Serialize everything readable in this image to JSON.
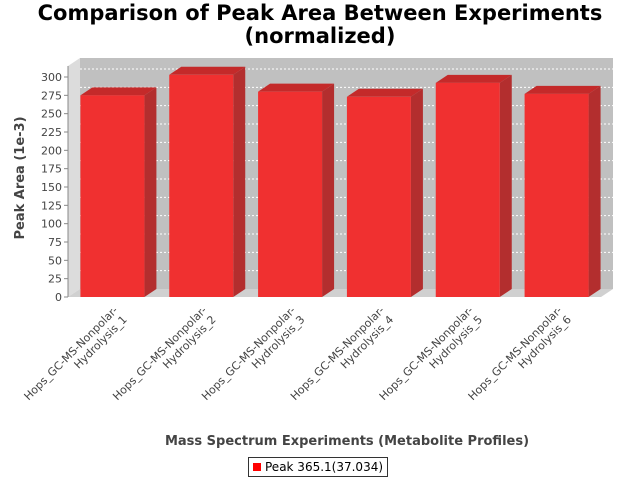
{
  "chart_data": {
    "type": "bar",
    "title_line1": "Comparison of Peak Area Between Experiments",
    "title_line2": "(normalized)",
    "xlabel": "Mass Spectrum Experiments (Metabolite Profiles)",
    "ylabel": "Peak Area (1e-3)",
    "ylim": [
      0,
      300
    ],
    "yticks": [
      0,
      25,
      50,
      75,
      100,
      125,
      150,
      175,
      200,
      225,
      250,
      275,
      300
    ],
    "grid": true,
    "legend_position": "bottom",
    "categories": [
      [
        "Hops_GC-MS-Nonpolar-",
        "Hydrolysis_1"
      ],
      [
        "Hops_GC-MS-Nonpolar-",
        "Hydrolysis_2"
      ],
      [
        "Hops_GC-MS-Nonpolar-",
        "Hydrolysis_3"
      ],
      [
        "Hops_GC-MS-Nonpolar-",
        "Hydrolysis_4"
      ],
      [
        "Hops_GC-MS-Nonpolar-",
        "Hydrolysis_5"
      ],
      [
        "Hops_GC-MS-Nonpolar-",
        "Hydrolysis_6"
      ]
    ],
    "series": [
      {
        "name": "Peak 365.1(37.034)",
        "color": "#ff0000",
        "values": [
          275,
          303,
          280,
          273,
          292,
          277
        ]
      }
    ]
  }
}
